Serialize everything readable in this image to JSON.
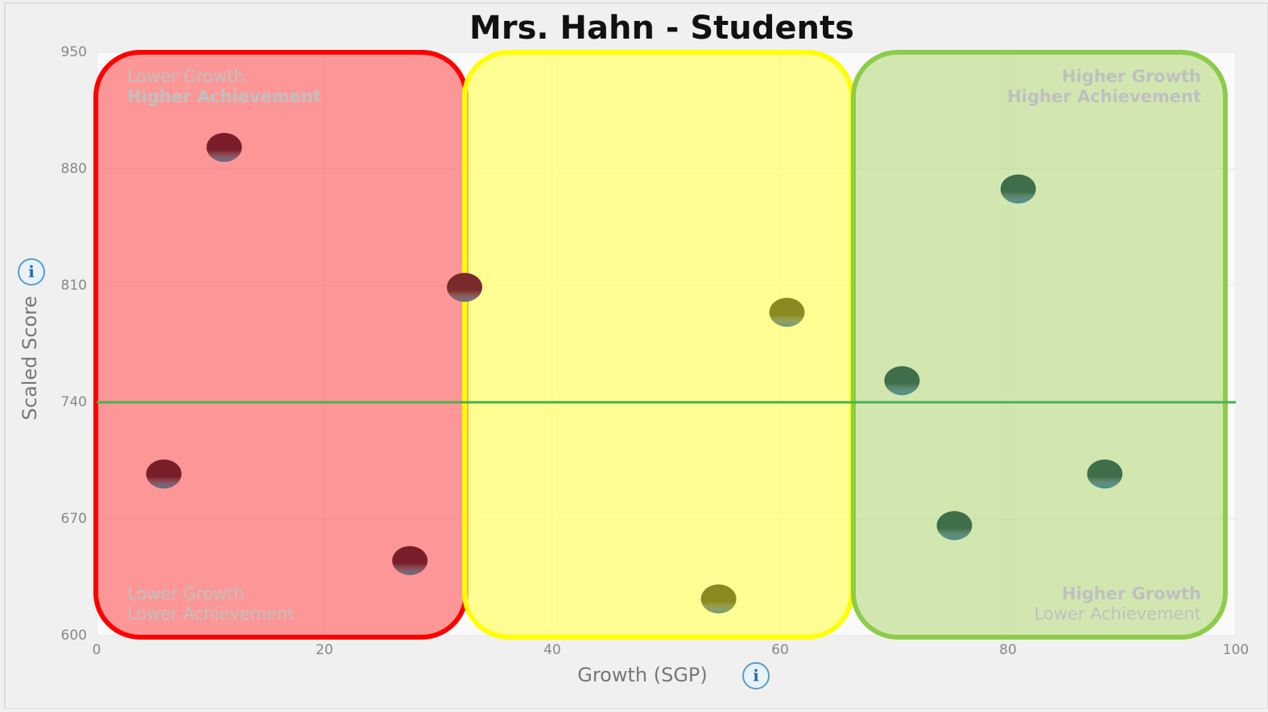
{
  "chart_data": {
    "type": "scatter",
    "title": "Mrs. Hahn - Students",
    "x_label": "Growth (SGP)",
    "y_label": "Scaled Score",
    "info_icon": "i",
    "series": [
      {
        "name": null,
        "x": [
          11.2,
          5.9,
          27.5,
          32.3,
          60.6,
          54.6,
          70.7,
          80.9,
          75.3,
          88.5
        ],
        "values": [
          893,
          697,
          645,
          809,
          794,
          622,
          753,
          868,
          666,
          697
        ],
        "colors": [
          "#7a1f2a",
          "#7a1f2a",
          "#7a1f2a",
          "#7a2a2a",
          "#8a8a20",
          "#8a8a20",
          "#3f6e4a",
          "#3f6e4a",
          "#3f6e4a",
          "#3f6e4a"
        ]
      }
    ],
    "reference_line": {
      "value": 740,
      "color": "#4caf50"
    },
    "annotations": [
      [
        "Lower Growth",
        "Higher Achievement"
      ],
      [
        "Higher Growth",
        "Higher Achievement"
      ],
      [
        "Lower Growth",
        "Lower Achievement"
      ],
      [
        "Higher Growth",
        "Lower Achievement"
      ]
    ],
    "xlim": [
      0,
      100
    ],
    "xticks": [
      0,
      20,
      40,
      60,
      80,
      100
    ],
    "ylim": [
      600,
      950
    ],
    "yticks": [
      600,
      670,
      740,
      810,
      880,
      950
    ],
    "grid": true
  }
}
